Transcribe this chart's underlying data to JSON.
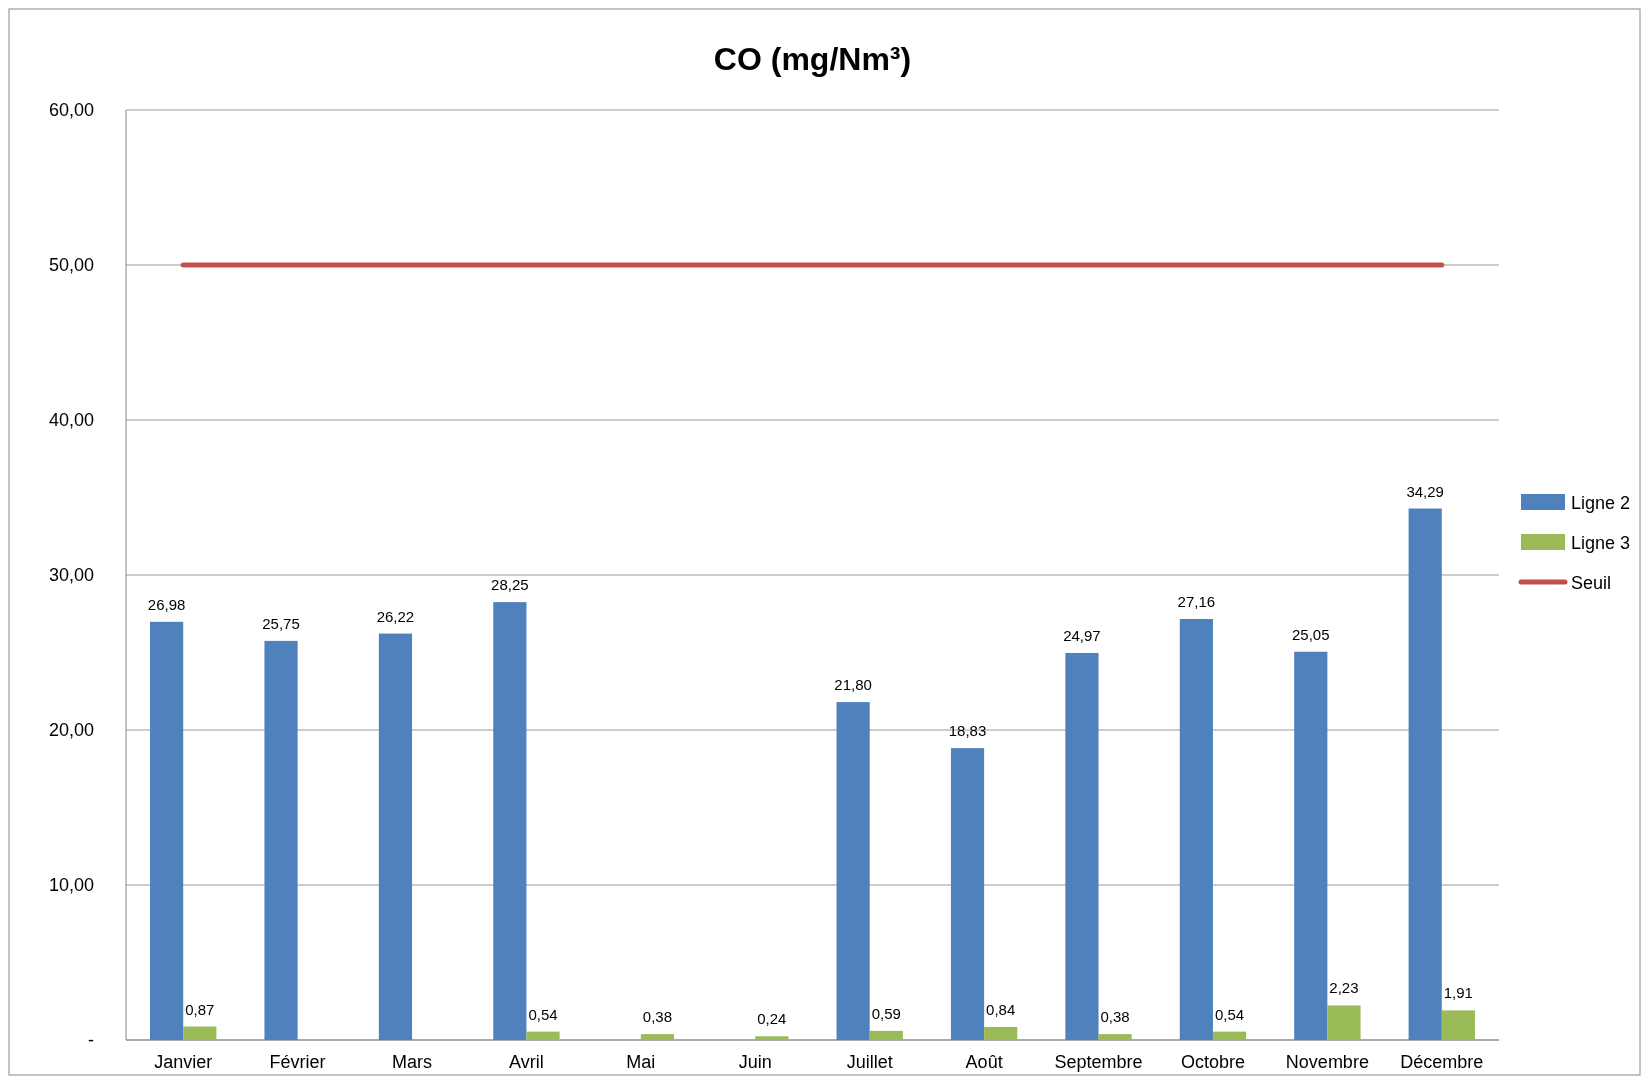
{
  "chart_data": {
    "type": "bar",
    "title": "CO (mg/Nm³)",
    "categories": [
      "Janvier",
      "Février",
      "Mars",
      "Avril",
      "Mai",
      "Juin",
      "Juillet",
      "Août",
      "Septembre",
      "Octobre",
      "Novembre",
      "Décembre"
    ],
    "series": [
      {
        "name": "Ligne 2",
        "color": "#4f81bd",
        "values": [
          26.98,
          25.75,
          26.22,
          28.25,
          null,
          null,
          21.8,
          18.83,
          24.97,
          27.16,
          25.05,
          34.29
        ],
        "value_labels": [
          "26,98",
          "25,75",
          "26,22",
          "28,25",
          null,
          null,
          "21,80",
          "18,83",
          "24,97",
          "27,16",
          "25,05",
          "34,29"
        ]
      },
      {
        "name": "Ligne 3",
        "color": "#9bbb59",
        "values": [
          0.87,
          null,
          null,
          0.54,
          0.38,
          0.24,
          0.59,
          0.84,
          0.38,
          0.54,
          2.23,
          1.91
        ],
        "value_labels": [
          "0,87",
          null,
          null,
          "0,54",
          "0,38",
          "0,24",
          "0,59",
          "0,84",
          "0,38",
          "0,54",
          "2,23",
          "1,91"
        ]
      },
      {
        "name": "Seuil",
        "type": "line",
        "color": "#c0504d",
        "values": [
          50,
          50,
          50,
          50,
          50,
          50,
          50,
          50,
          50,
          50,
          50,
          50
        ]
      }
    ],
    "ylim": [
      0,
      60
    ],
    "yticks": [
      {
        "value": 0,
        "label": "-"
      },
      {
        "value": 10,
        "label": "10,00"
      },
      {
        "value": 20,
        "label": "20,00"
      },
      {
        "value": 30,
        "label": "30,00"
      },
      {
        "value": 40,
        "label": "40,00"
      },
      {
        "value": 50,
        "label": "50,00"
      },
      {
        "value": 60,
        "label": "60,00"
      }
    ],
    "grid": "y",
    "legend": "right"
  }
}
